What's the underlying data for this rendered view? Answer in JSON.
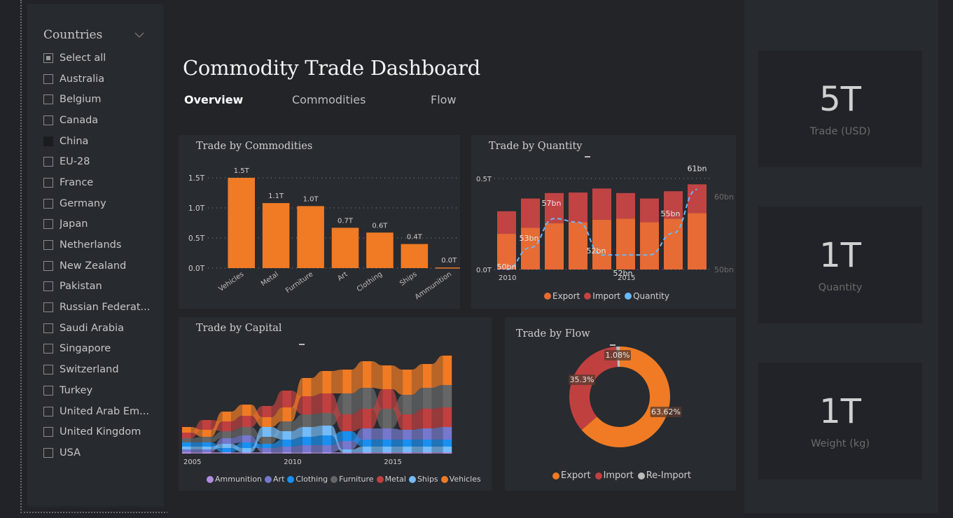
{
  "slicer": {
    "title": "Countries",
    "items": [
      {
        "label": "Select all",
        "state": "partial"
      },
      {
        "label": "Australia",
        "state": "unchecked"
      },
      {
        "label": "Belgium",
        "state": "unchecked"
      },
      {
        "label": "Canada",
        "state": "unchecked"
      },
      {
        "label": "China",
        "state": "hover"
      },
      {
        "label": "EU-28",
        "state": "unchecked"
      },
      {
        "label": "France",
        "state": "unchecked"
      },
      {
        "label": "Germany",
        "state": "unchecked"
      },
      {
        "label": "Japan",
        "state": "unchecked"
      },
      {
        "label": "Netherlands",
        "state": "unchecked"
      },
      {
        "label": "New Zealand",
        "state": "unchecked"
      },
      {
        "label": "Pakistan",
        "state": "unchecked"
      },
      {
        "label": "Russian Federat...",
        "state": "unchecked"
      },
      {
        "label": "Saudi Arabia",
        "state": "unchecked"
      },
      {
        "label": "Singapore",
        "state": "unchecked"
      },
      {
        "label": "Switzerland",
        "state": "unchecked"
      },
      {
        "label": "Turkey",
        "state": "unchecked"
      },
      {
        "label": "United Arab Em...",
        "state": "unchecked"
      },
      {
        "label": "United Kingdom",
        "state": "unchecked"
      },
      {
        "label": "USA",
        "state": "unchecked"
      }
    ]
  },
  "header": {
    "title": "Commodity Trade Dashboard",
    "tabs": [
      {
        "label": "Overview",
        "active": true
      },
      {
        "label": "Commodities",
        "active": false
      },
      {
        "label": "Flow",
        "active": false
      }
    ]
  },
  "colors": {
    "orange": "#f07b24",
    "export": "#e66b35",
    "import": "#c04444",
    "quantity": "#6ab8f7",
    "ammunition": "#b28ddf",
    "art": "#7578cc",
    "clothing": "#1a8fef",
    "furniture": "#666666",
    "metal": "#c04040",
    "ships": "#74bbf7",
    "vehicles": "#f07b24",
    "reimport": "#bbbbbb"
  },
  "kpis": [
    {
      "value": "5T",
      "label": "Trade (USD)"
    },
    {
      "value": "1T",
      "label": "Quantity"
    },
    {
      "value": "1T",
      "label": "Weight (kg)"
    }
  ],
  "chart_data": [
    {
      "id": "commodities",
      "type": "bar",
      "title": "Trade by Commodities",
      "categories": [
        "Vehicles",
        "Metal",
        "Furniture",
        "Art",
        "Clothing",
        "Ships",
        "Ammunition"
      ],
      "values": [
        1.5,
        1.08,
        1.03,
        0.67,
        0.59,
        0.4,
        0.01
      ],
      "data_labels": [
        "1.5T",
        "1.1T",
        "1.0T",
        "0.7T",
        "0.6T",
        "0.4T",
        "0.0T"
      ],
      "yticks": [
        "0.0T",
        "0.5T",
        "1.0T",
        "1.5T"
      ],
      "ylim": [
        0,
        1.5
      ],
      "unit": "T",
      "grid": true
    },
    {
      "id": "quantity",
      "type": "bar",
      "title": "Trade by Quantity",
      "x": [
        2010,
        2011,
        2012,
        2013,
        2014,
        2015,
        2016,
        2017,
        2018
      ],
      "xticks": [
        "2010",
        "2015"
      ],
      "series": [
        {
          "name": "Export",
          "kind": "stacked-bar",
          "values": [
            0.196,
            0.23,
            0.255,
            0.26,
            0.274,
            0.28,
            0.26,
            0.28,
            0.31
          ]
        },
        {
          "name": "Import",
          "kind": "stacked-bar",
          "values": [
            0.124,
            0.16,
            0.165,
            0.163,
            0.171,
            0.14,
            0.13,
            0.15,
            0.158
          ]
        },
        {
          "name": "Quantity",
          "kind": "dashed-line",
          "axis": "secondary",
          "values": [
            50,
            53,
            57,
            56.5,
            52,
            52,
            52,
            55,
            61
          ]
        }
      ],
      "line_labels": [
        "50bn",
        "53bn",
        "57bn",
        "",
        "52bn",
        "52bn",
        "",
        "55bn",
        "61bn"
      ],
      "yticks": [
        "0.0T",
        "0.5T"
      ],
      "ylim": [
        0,
        0.5
      ],
      "y2ticks": [
        "50bn",
        "60bn"
      ],
      "y2lim": [
        50,
        60
      ],
      "legend": [
        "Export",
        "Import",
        "Quantity"
      ],
      "legend_position": "bottom"
    },
    {
      "id": "capital",
      "type": "area",
      "subtype": "ribbon",
      "title": "Trade by Capital",
      "x": [
        2005,
        2006,
        2007,
        2008,
        2009,
        2010,
        2011,
        2012,
        2013,
        2014,
        2015,
        2016,
        2017,
        2018
      ],
      "xticks": [
        "2005",
        "2010",
        "2015"
      ],
      "series": [
        {
          "name": "Ammunition",
          "values": [
            0.01,
            0.01,
            0.01,
            0.01,
            0.01,
            0.01,
            0.01,
            0.01,
            0.01,
            0.01,
            0.01,
            0.01,
            0.01,
            0.01
          ]
        },
        {
          "name": "Art",
          "values": [
            0.02,
            0.02,
            0.04,
            0.05,
            0.03,
            0.04,
            0.05,
            0.05,
            0.06,
            0.08,
            0.08,
            0.07,
            0.08,
            0.09
          ]
        },
        {
          "name": "Clothing",
          "values": [
            0.03,
            0.03,
            0.03,
            0.04,
            0.03,
            0.05,
            0.06,
            0.07,
            0.07,
            0.05,
            0.05,
            0.05,
            0.05,
            0.05
          ]
        },
        {
          "name": "Furniture",
          "values": [
            0.03,
            0.04,
            0.05,
            0.06,
            0.05,
            0.07,
            0.09,
            0.09,
            0.15,
            0.15,
            0.14,
            0.14,
            0.15,
            0.16
          ]
        },
        {
          "name": "Metal",
          "values": [
            0.04,
            0.07,
            0.07,
            0.08,
            0.08,
            0.12,
            0.13,
            0.14,
            0.12,
            0.14,
            0.14,
            0.11,
            0.14,
            0.14
          ]
        },
        {
          "name": "Ships",
          "values": [
            0.02,
            0.02,
            0.03,
            0.03,
            0.07,
            0.06,
            0.07,
            0.07,
            0.02,
            0.04,
            0.04,
            0.04,
            0.04,
            0.04
          ]
        },
        {
          "name": "Vehicles",
          "values": [
            0.04,
            0.05,
            0.07,
            0.08,
            0.07,
            0.1,
            0.13,
            0.16,
            0.17,
            0.19,
            0.17,
            0.18,
            0.17,
            0.21
          ]
        }
      ],
      "legend": [
        "Ammunition",
        "Art",
        "Clothing",
        "Furniture",
        "Metal",
        "Ships",
        "Vehicles"
      ],
      "legend_position": "bottom"
    },
    {
      "id": "flow",
      "type": "pie",
      "subtype": "donut",
      "title": "Trade by Flow",
      "categories": [
        "Export",
        "Import",
        "Re-Import"
      ],
      "values": [
        63.62,
        35.3,
        1.08
      ],
      "data_labels": [
        "63.62%",
        "35.3%",
        "1.08%"
      ],
      "legend": [
        "Export",
        "Import",
        "Re-Import"
      ],
      "legend_position": "bottom"
    }
  ]
}
